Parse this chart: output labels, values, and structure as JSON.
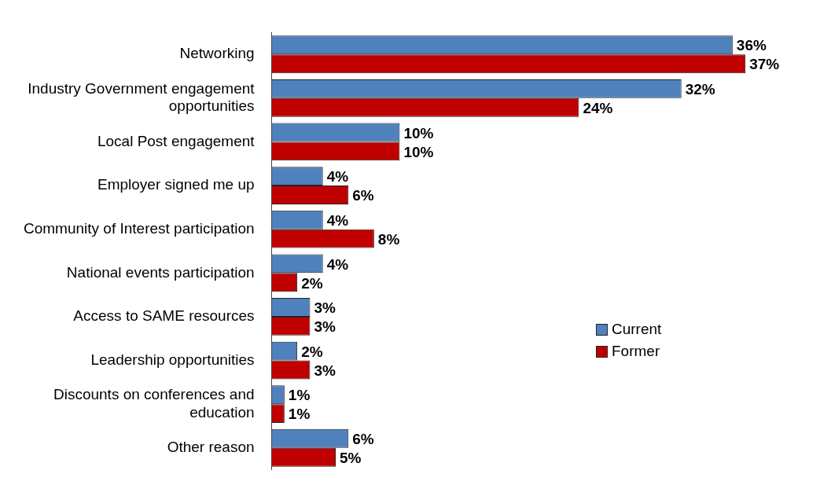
{
  "chart_data": {
    "type": "bar",
    "orientation": "horizontal",
    "categories": [
      "Networking",
      "Industry Government engagement opportunities",
      "Local Post engagement",
      "Employer signed me up",
      "Community of Interest participation",
      "National events participation",
      "Access to SAME resources",
      "Leadership opportunities",
      "Discounts on conferences and education",
      "Other reason"
    ],
    "series": [
      {
        "name": "Current",
        "color": "#4f81bd",
        "values": [
          36,
          32,
          10,
          4,
          4,
          4,
          3,
          2,
          1,
          6
        ],
        "value_labels": [
          "36%",
          "32%",
          "10%",
          "4%",
          "4%",
          "4%",
          "3%",
          "2%",
          "1%",
          "6%"
        ]
      },
      {
        "name": "Former",
        "color": "#c00000",
        "values": [
          37,
          24,
          10,
          6,
          8,
          2,
          3,
          3,
          1,
          5
        ],
        "value_labels": [
          "37%",
          "24%",
          "10%",
          "6%",
          "8%",
          "2%",
          "3%",
          "3%",
          "1%",
          "5%"
        ]
      }
    ],
    "legend": "right"
  }
}
